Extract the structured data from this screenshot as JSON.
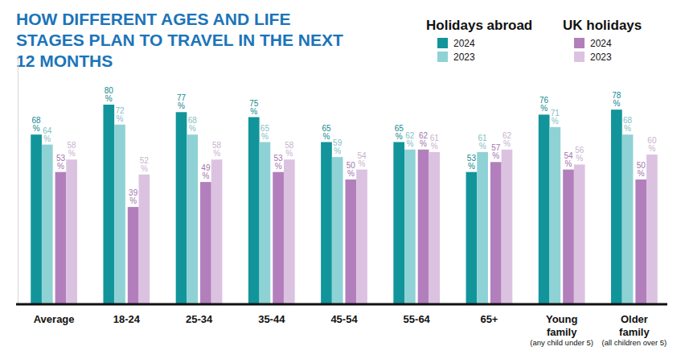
{
  "chart_data": {
    "type": "bar",
    "title": "HOW DIFFERENT AGES AND LIFE STAGES PLAN TO TRAVEL IN THE NEXT 12 MONTHS",
    "categories": [
      "Average",
      "18-24",
      "25-34",
      "35-44",
      "45-54",
      "55-64",
      "65+",
      "Young family",
      "Older family"
    ],
    "category_notes": [
      null,
      null,
      null,
      null,
      null,
      null,
      null,
      "(any child under 5)",
      "(all children over 5)"
    ],
    "series": [
      {
        "name": "2024",
        "group": "Holidays abroad",
        "color": "#11959b",
        "values": [
          68,
          80,
          77,
          75,
          65,
          65,
          53,
          76,
          78
        ],
        "value_labels": [
          "68%",
          "80%",
          "77%",
          "75%",
          "65%",
          "65%",
          "53%",
          "76%",
          "78%"
        ]
      },
      {
        "name": "2023",
        "group": "Holidays abroad",
        "color": "#8fd2d5",
        "values": [
          64,
          72,
          68,
          65,
          59,
          62,
          61,
          71,
          68
        ],
        "value_labels": [
          "64%",
          "72%",
          "68%",
          "65%",
          "59%",
          "62%",
          "61%",
          "71%",
          "68%"
        ]
      },
      {
        "name": "2024",
        "group": "UK holidays",
        "color": "#b27fbc",
        "values": [
          53,
          39,
          49,
          53,
          50,
          62,
          57,
          54,
          50
        ],
        "value_labels": [
          "53%",
          "39%",
          "49%",
          "53%",
          "50%",
          "62%",
          "57%",
          "54%",
          "50%"
        ]
      },
      {
        "name": "2023",
        "group": "UK holidays",
        "color": "#dcc2e1",
        "values": [
          58,
          52,
          58,
          58,
          54,
          61,
          62,
          56,
          60
        ],
        "value_labels": [
          "58%",
          "52%",
          "58%",
          "58%",
          "54%",
          "61%",
          "62%",
          "56%",
          "60%"
        ]
      }
    ],
    "ylim": [
      0,
      100
    ],
    "yticks": [],
    "data_labels": true,
    "tick_labels": "x",
    "legend": "top-right"
  }
}
